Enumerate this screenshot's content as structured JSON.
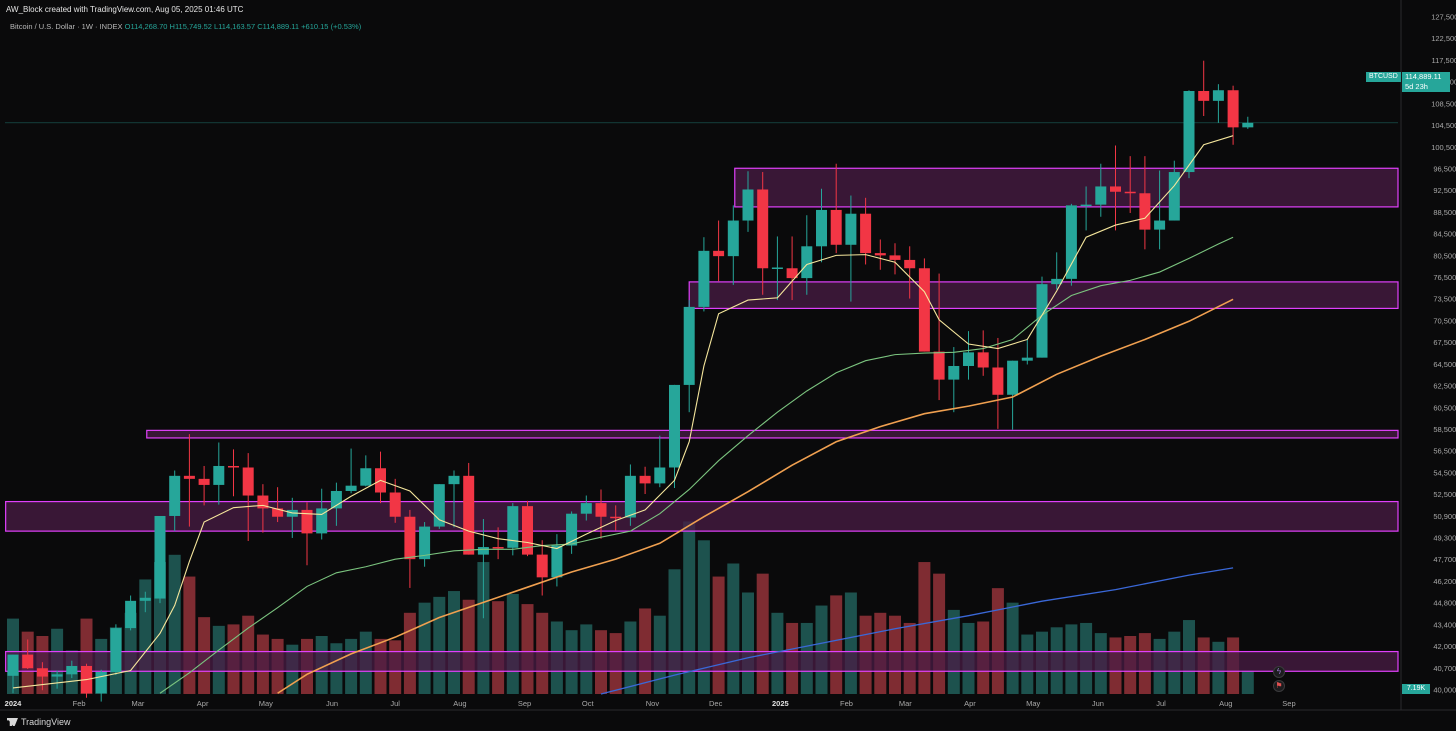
{
  "header": {
    "credit": "AW_Block created with TradingView.com, Aug 05, 2025 01:46 UTC",
    "symbol_title": "Bitcoin / U.S. Dollar · 1W · INDEX",
    "ohlc": "O114,268.70  H115,749.52  L114,163.57  C114,889.11  +610.15 (+0.53%)"
  },
  "price_scale": {
    "symbol_badge": "BTCUSD",
    "last_price": "114,889.11",
    "countdown": "5d 23h",
    "volume_tag": "7.19K",
    "icons": [
      "lightning-icon",
      "flag-icon"
    ]
  },
  "footer": {
    "brand": "TradingView"
  },
  "colors": {
    "background": "#0a0a0b",
    "up": "#26a69a",
    "down": "#f23645",
    "zone_fill": "#4a1c45",
    "zone_border": "#e040fb",
    "ma_short": "#f5e69c",
    "ma_mid": "#7bc47f",
    "ma_long": "#f0a050",
    "ma_vol": "#3a68d8"
  },
  "chart_data": {
    "type": "candlestick",
    "title": "Bitcoin / U.S. Dollar · 1W · INDEX",
    "ylim": [
      39500,
      129000
    ],
    "y_ticks": [
      "127,500.00",
      "122,500.00",
      "117,500.00",
      "112,500.00",
      "108,500.00",
      "104,500.00",
      "100,500.00",
      "96,500.00",
      "92,500.00",
      "88,500.00",
      "84,500.00",
      "80,500.00",
      "76,500.00",
      "73,500.00",
      "70,500.00",
      "67,500.00",
      "64,500.00",
      "62,500.00",
      "60,500.00",
      "58,500.00",
      "56,500.00",
      "54,500.00",
      "52,500.00",
      "50,900.00",
      "49,300.00",
      "47,700.00",
      "46,200.00",
      "44,800.00",
      "43,400.00",
      "42,000.00",
      "40,700.00",
      "40,000.00"
    ],
    "x_labels": [
      {
        "label": "2024",
        "week": 0
      },
      {
        "label": "Feb",
        "week": 4.5
      },
      {
        "label": "Mar",
        "week": 8.5
      },
      {
        "label": "Apr",
        "week": 12.9
      },
      {
        "label": "May",
        "week": 17.2
      },
      {
        "label": "Jun",
        "week": 21.7
      },
      {
        "label": "Jul",
        "week": 26
      },
      {
        "label": "Aug",
        "week": 30.4
      },
      {
        "label": "Sep",
        "week": 34.8
      },
      {
        "label": "Oct",
        "week": 39.1
      },
      {
        "label": "Nov",
        "week": 43.5
      },
      {
        "label": "Dec",
        "week": 47.8
      },
      {
        "label": "2025",
        "week": 52.2
      },
      {
        "label": "Feb",
        "week": 56.7
      },
      {
        "label": "Mar",
        "week": 60.7
      },
      {
        "label": "Apr",
        "week": 65.1
      },
      {
        "label": "May",
        "week": 69.4
      },
      {
        "label": "Jun",
        "week": 73.8
      },
      {
        "label": "Jul",
        "week": 78.1
      },
      {
        "label": "Aug",
        "week": 82.5
      },
      {
        "label": "Sep",
        "week": 86.8
      }
    ],
    "candles": [
      [
        41900,
        44000,
        39600,
        44700,
        5.2
      ],
      [
        44700,
        46700,
        42800,
        42900,
        4.3
      ],
      [
        42900,
        43700,
        40000,
        41800,
        4.0
      ],
      [
        41800,
        42600,
        40200,
        42100,
        4.5
      ],
      [
        42100,
        43900,
        41600,
        43200,
        3.0
      ],
      [
        43200,
        43500,
        39000,
        39600,
        5.2
      ],
      [
        39600,
        42700,
        38500,
        42400,
        3.8
      ],
      [
        42400,
        48700,
        42000,
        48200,
        4.6
      ],
      [
        48200,
        52500,
        47900,
        51800,
        5.6
      ],
      [
        51800,
        53000,
        50300,
        52200,
        7.9
      ],
      [
        52100,
        63000,
        51500,
        63000,
        9.1
      ],
      [
        63000,
        69000,
        61000,
        68300,
        9.6
      ],
      [
        68300,
        73800,
        61600,
        67900,
        8.1
      ],
      [
        67900,
        69600,
        64400,
        67100,
        5.3
      ],
      [
        67100,
        72700,
        64500,
        69600,
        4.7
      ],
      [
        69600,
        71800,
        65600,
        69400,
        4.8
      ],
      [
        69400,
        71300,
        59700,
        65700,
        5.4
      ],
      [
        65700,
        67200,
        60800,
        64000,
        4.1
      ],
      [
        64000,
        66800,
        62200,
        62900,
        3.8
      ],
      [
        62900,
        65400,
        60100,
        63800,
        3.4
      ],
      [
        63800,
        64800,
        56500,
        60700,
        3.8
      ],
      [
        60700,
        66600,
        59900,
        64000,
        4.0
      ],
      [
        64000,
        67400,
        61700,
        66300,
        3.5
      ],
      [
        66300,
        71900,
        66000,
        67000,
        3.8
      ],
      [
        67000,
        71000,
        66900,
        69300,
        4.3
      ],
      [
        69300,
        71500,
        64700,
        66100,
        3.8
      ],
      [
        66100,
        67900,
        62100,
        62900,
        3.7
      ],
      [
        62900,
        63800,
        53500,
        57300,
        5.6
      ],
      [
        57300,
        62200,
        56300,
        61600,
        6.3
      ],
      [
        61600,
        66500,
        61300,
        67200,
        6.7
      ],
      [
        67200,
        69000,
        61500,
        68300,
        7.1
      ],
      [
        68300,
        70000,
        58300,
        57900,
        6.5
      ],
      [
        57900,
        62600,
        49500,
        58900,
        9.1
      ],
      [
        58900,
        61500,
        57300,
        58800,
        6.4
      ],
      [
        58800,
        64700,
        57800,
        64300,
        6.9
      ],
      [
        64300,
        65000,
        57700,
        57900,
        6.2
      ],
      [
        57900,
        59800,
        52500,
        54900,
        5.6
      ],
      [
        54900,
        60600,
        53700,
        59100,
        5.0
      ],
      [
        59100,
        63600,
        58000,
        63300,
        4.4
      ],
      [
        63300,
        65700,
        62400,
        64700,
        4.8
      ],
      [
        64700,
        66500,
        60000,
        62900,
        4.4
      ],
      [
        62900,
        64400,
        61100,
        62800,
        4.2
      ],
      [
        62800,
        69800,
        61700,
        68300,
        5.0
      ],
      [
        68300,
        69500,
        65900,
        67300,
        5.9
      ],
      [
        67300,
        73600,
        66800,
        69400,
        5.4
      ],
      [
        69400,
        80000,
        66700,
        80300,
        8.6
      ],
      [
        80300,
        91500,
        76700,
        90600,
        11.9
      ],
      [
        90600,
        99800,
        90000,
        98000,
        10.6
      ],
      [
        98000,
        102000,
        94000,
        97300,
        8.1
      ],
      [
        97300,
        104000,
        93500,
        102000,
        9.0
      ],
      [
        102000,
        108500,
        100500,
        106100,
        7.0
      ],
      [
        106100,
        108400,
        92200,
        95700,
        8.3
      ],
      [
        95700,
        99900,
        91500,
        95800,
        5.6
      ],
      [
        95700,
        99900,
        91500,
        94400,
        4.9
      ],
      [
        94400,
        102700,
        92200,
        98600,
        4.9
      ],
      [
        98600,
        106200,
        96500,
        103400,
        6.1
      ],
      [
        103400,
        109500,
        97700,
        98800,
        6.8
      ],
      [
        98800,
        105300,
        91300,
        102900,
        7.0
      ],
      [
        102900,
        105000,
        96200,
        97700,
        5.4
      ],
      [
        97700,
        99500,
        95500,
        97400,
        5.6
      ],
      [
        97400,
        99000,
        94900,
        96800,
        5.4
      ],
      [
        96800,
        98600,
        91700,
        95700,
        4.9
      ],
      [
        95700,
        97000,
        85000,
        84700,
        9.1
      ],
      [
        84700,
        95000,
        78300,
        81000,
        8.3
      ],
      [
        81000,
        85300,
        76700,
        82800,
        5.8
      ],
      [
        82800,
        87400,
        81000,
        84600,
        4.9
      ],
      [
        84600,
        87500,
        81500,
        82600,
        5.0
      ],
      [
        82600,
        86500,
        74500,
        79000,
        7.3
      ],
      [
        79000,
        83000,
        74400,
        83500,
        6.3
      ],
      [
        83500,
        86400,
        83000,
        83900,
        4.1
      ],
      [
        83900,
        94600,
        83900,
        93600,
        4.3
      ],
      [
        93600,
        97800,
        92900,
        94300,
        4.6
      ],
      [
        94300,
        104200,
        93400,
        104000,
        4.8
      ],
      [
        104000,
        106500,
        100700,
        104100,
        4.9
      ],
      [
        104100,
        109500,
        102500,
        106500,
        4.2
      ],
      [
        106500,
        111900,
        100700,
        105800,
        3.9
      ],
      [
        105800,
        110500,
        103000,
        105600,
        4.0
      ],
      [
        105600,
        110500,
        98200,
        100800,
        4.2
      ],
      [
        100800,
        108600,
        98200,
        102000,
        3.8
      ],
      [
        102000,
        109900,
        102000,
        108400,
        4.3
      ],
      [
        108400,
        119200,
        107600,
        119100,
        5.1
      ],
      [
        119100,
        123100,
        115800,
        117800,
        3.9
      ],
      [
        117800,
        120000,
        114900,
        119200,
        3.6
      ],
      [
        119200,
        119800,
        112000,
        114300,
        3.9
      ],
      [
        114300,
        115700,
        114100,
        114900,
        1.6
      ]
    ],
    "ma_short": [
      [
        0,
        40300
      ],
      [
        5,
        41400
      ],
      [
        8,
        42600
      ],
      [
        10,
        47500
      ],
      [
        11,
        51200
      ],
      [
        12,
        57000
      ],
      [
        13,
        62200
      ],
      [
        15,
        64100
      ],
      [
        17,
        64400
      ],
      [
        19,
        63400
      ],
      [
        21,
        63200
      ],
      [
        23,
        65600
      ],
      [
        25,
        67700
      ],
      [
        27,
        66300
      ],
      [
        29,
        62500
      ],
      [
        31,
        61000
      ],
      [
        33,
        60000
      ],
      [
        35,
        59500
      ],
      [
        37,
        58700
      ],
      [
        39,
        60600
      ],
      [
        41,
        62400
      ],
      [
        43,
        63800
      ],
      [
        45,
        67700
      ],
      [
        46,
        72800
      ],
      [
        47,
        82800
      ],
      [
        48,
        89700
      ],
      [
        50,
        91500
      ],
      [
        52,
        91800
      ],
      [
        54,
        96200
      ],
      [
        56,
        97400
      ],
      [
        58,
        97500
      ],
      [
        60,
        96500
      ],
      [
        62,
        92600
      ],
      [
        63,
        88900
      ],
      [
        65,
        85700
      ],
      [
        67,
        85100
      ],
      [
        69,
        86300
      ],
      [
        71,
        92700
      ],
      [
        73,
        99800
      ],
      [
        75,
        101400
      ],
      [
        77,
        102300
      ],
      [
        79,
        106600
      ],
      [
        81,
        112000
      ],
      [
        83,
        113200
      ]
    ],
    "ma_mid": [
      [
        10,
        39600
      ],
      [
        12,
        42300
      ],
      [
        14,
        45300
      ],
      [
        16,
        48200
      ],
      [
        18,
        50900
      ],
      [
        20,
        53700
      ],
      [
        22,
        55500
      ],
      [
        24,
        56300
      ],
      [
        26,
        57300
      ],
      [
        28,
        57800
      ],
      [
        30,
        58400
      ],
      [
        32,
        58600
      ],
      [
        34,
        58600
      ],
      [
        36,
        59100
      ],
      [
        38,
        59300
      ],
      [
        40,
        60200
      ],
      [
        42,
        61000
      ],
      [
        44,
        63300
      ],
      [
        46,
        66500
      ],
      [
        48,
        70300
      ],
      [
        50,
        73600
      ],
      [
        52,
        76700
      ],
      [
        54,
        79500
      ],
      [
        56,
        81900
      ],
      [
        58,
        83500
      ],
      [
        60,
        84300
      ],
      [
        62,
        84500
      ],
      [
        64,
        84600
      ],
      [
        66,
        85100
      ],
      [
        68,
        86300
      ],
      [
        70,
        89500
      ],
      [
        72,
        92100
      ],
      [
        74,
        93400
      ],
      [
        76,
        94100
      ],
      [
        78,
        95200
      ],
      [
        80,
        97000
      ],
      [
        82,
        98900
      ],
      [
        83,
        99800
      ]
    ],
    "ma_long": [
      [
        18,
        39600
      ],
      [
        20,
        42100
      ],
      [
        23,
        44800
      ],
      [
        26,
        47000
      ],
      [
        29,
        49600
      ],
      [
        32,
        51600
      ],
      [
        35,
        53600
      ],
      [
        38,
        55600
      ],
      [
        41,
        57300
      ],
      [
        44,
        59400
      ],
      [
        47,
        62900
      ],
      [
        50,
        66200
      ],
      [
        53,
        69700
      ],
      [
        56,
        72800
      ],
      [
        59,
        74800
      ],
      [
        62,
        76500
      ],
      [
        65,
        77500
      ],
      [
        68,
        78700
      ],
      [
        71,
        81700
      ],
      [
        74,
        84100
      ],
      [
        77,
        86300
      ],
      [
        80,
        88700
      ],
      [
        83,
        91600
      ]
    ],
    "ma_volume": [
      [
        40,
        0.0
      ],
      [
        45,
        1.3
      ],
      [
        50,
        2.5
      ],
      [
        55,
        3.5
      ],
      [
        60,
        4.5
      ],
      [
        65,
        5.4
      ],
      [
        70,
        6.4
      ],
      [
        75,
        7.2
      ],
      [
        80,
        8.2
      ],
      [
        83,
        8.7
      ]
    ],
    "zones": [
      {
        "y1": 103800,
        "y2": 108900,
        "from": 49.1
      },
      {
        "y1": 90400,
        "y2": 93900,
        "from": 46.0
      },
      {
        "y1": 73300,
        "y2": 74300,
        "from": 9.1
      },
      {
        "y1": 61000,
        "y2": 64900,
        "from": -0.5
      },
      {
        "y1": 42500,
        "y2": 45100,
        "from": -0.5
      }
    ]
  }
}
